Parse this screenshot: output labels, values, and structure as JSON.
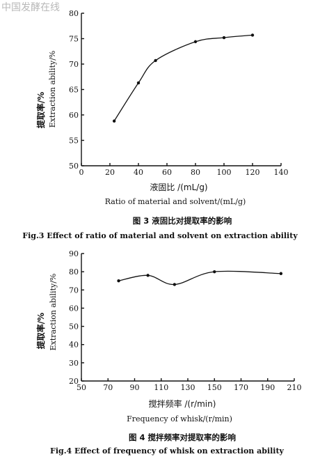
{
  "watermark": "中国发酵在线",
  "chart_data": [
    {
      "type": "line",
      "ylabel_cn": "提取率/%",
      "ylabel_en": "Extraction ability/%",
      "xlabel_cn": "液固比 /(mL/g)",
      "xlabel_en": "Ratio of material and solvent/(mL/g)",
      "caption_cn": "图 3   液固比对提取率的影响",
      "caption_en": "Fig.3   Effect of ratio of material and solvent on extraction ability",
      "xlim": [
        0,
        140
      ],
      "ylim": [
        50,
        80
      ],
      "xticks": [
        0,
        20,
        40,
        60,
        80,
        100,
        120,
        140
      ],
      "yticks": [
        50,
        55,
        60,
        65,
        70,
        75,
        80
      ],
      "x": [
        23,
        40,
        52,
        80,
        100,
        120
      ],
      "y": [
        58.8,
        66.3,
        70.7,
        74.4,
        75.2,
        75.7
      ]
    },
    {
      "type": "line",
      "ylabel_cn": "提取率/%",
      "ylabel_en": "Extraction ability/%",
      "xlabel_cn": "搅拌频率 /(r/min)",
      "xlabel_en": "Frequency of whisk/(r/min)",
      "caption_cn": "图 4   搅拌频率对提取率的影响",
      "caption_en": "Fig.4   Effect of frequency of whisk on extraction ability",
      "xlim": [
        50,
        210
      ],
      "ylim": [
        20,
        90
      ],
      "xticks": [
        50,
        70,
        90,
        110,
        130,
        150,
        170,
        190,
        210
      ],
      "yticks": [
        20,
        30,
        40,
        50,
        60,
        70,
        80,
        90
      ],
      "x": [
        78,
        100,
        120,
        150,
        200
      ],
      "y": [
        75,
        78,
        73,
        80,
        79
      ]
    }
  ]
}
